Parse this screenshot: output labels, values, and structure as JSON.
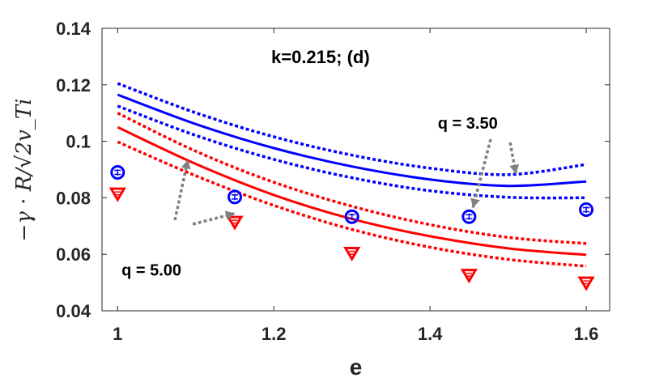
{
  "chart_data": {
    "type": "line",
    "title": "k=0.215; (d)",
    "xlabel": "e",
    "ylabel": "−γ · R/√2v_Ti",
    "xlim": [
      0.98,
      1.63
    ],
    "ylim": [
      0.04,
      0.14
    ],
    "xticks": [
      "1",
      "1.2",
      "1.4",
      "1.6"
    ],
    "xtick_values": [
      1.0,
      1.2,
      1.4,
      1.6
    ],
    "yticks": [
      "0.04",
      "0.06",
      "0.08",
      "0.1",
      "0.12",
      "0.14"
    ],
    "ytick_values": [
      0.04,
      0.06,
      0.08,
      0.1,
      0.12,
      0.14
    ],
    "grid": false,
    "colors": {
      "blue": "#0000ff",
      "red": "#ff0000",
      "arrow": "#808080",
      "axis": "#262626"
    },
    "series": [
      {
        "name": "q = 3.50 fit",
        "style": "solid",
        "color": "#0000ff",
        "x": [
          1.0,
          1.1,
          1.2,
          1.3,
          1.4,
          1.5,
          1.6
        ],
        "y": [
          0.1165,
          0.1061,
          0.0976,
          0.0911,
          0.0865,
          0.0842,
          0.0858
        ]
      },
      {
        "name": "q = 3.50 upper bound",
        "style": "dotted",
        "color": "#0000ff",
        "x": [
          1.0,
          1.1,
          1.2,
          1.3,
          1.4,
          1.5,
          1.6
        ],
        "y": [
          0.1205,
          0.1101,
          0.1016,
          0.0951,
          0.0905,
          0.0882,
          0.0918
        ]
      },
      {
        "name": "q = 3.50 lower bound",
        "style": "dotted",
        "color": "#0000ff",
        "x": [
          1.0,
          1.1,
          1.2,
          1.3,
          1.4,
          1.5,
          1.6
        ],
        "y": [
          0.1125,
          0.1021,
          0.0936,
          0.0871,
          0.0825,
          0.0802,
          0.08
        ]
      },
      {
        "name": "q = 5.00 fit",
        "style": "solid",
        "color": "#ff0000",
        "x": [
          1.0,
          1.1,
          1.2,
          1.3,
          1.4,
          1.5,
          1.6
        ],
        "y": [
          0.105,
          0.092,
          0.081,
          0.0725,
          0.0664,
          0.0621,
          0.0598
        ]
      },
      {
        "name": "q = 5.00 upper bound",
        "style": "dotted",
        "color": "#ff0000",
        "x": [
          1.0,
          1.1,
          1.2,
          1.3,
          1.4,
          1.5,
          1.6
        ],
        "y": [
          0.11,
          0.0965,
          0.0855,
          0.077,
          0.0705,
          0.066,
          0.0638
        ]
      },
      {
        "name": "q = 5.00 lower bound",
        "style": "dotted",
        "color": "#ff0000",
        "x": [
          1.0,
          1.1,
          1.2,
          1.3,
          1.4,
          1.5,
          1.6
        ],
        "y": [
          0.0998,
          0.0878,
          0.0773,
          0.0688,
          0.0625,
          0.0582,
          0.0558
        ]
      }
    ],
    "markers": [
      {
        "name": "q = 3.50 data",
        "shape": "circle",
        "color": "#0000ff",
        "x": [
          1.0,
          1.15,
          1.3,
          1.45,
          1.6
        ],
        "y": [
          0.089,
          0.0803,
          0.0733,
          0.0733,
          0.0758
        ]
      },
      {
        "name": "q = 5.00 data",
        "shape": "triangle-down",
        "color": "#ff0000",
        "x": [
          1.0,
          1.15,
          1.3,
          1.45,
          1.6
        ],
        "y": [
          0.0815,
          0.0715,
          0.0605,
          0.0527,
          0.05
        ]
      }
    ],
    "annotations": [
      {
        "text": "q = 3.50",
        "x": 1.41,
        "y": 0.1045,
        "arrows_to": [
          [
            1.455,
            0.0765
          ],
          [
            1.51,
            0.0885
          ]
        ]
      },
      {
        "text": "q = 5.00",
        "x": 1.005,
        "y": 0.0525,
        "arrows_to": [
          [
            1.09,
            0.0935
          ],
          [
            1.15,
            0.0745
          ]
        ]
      }
    ]
  }
}
